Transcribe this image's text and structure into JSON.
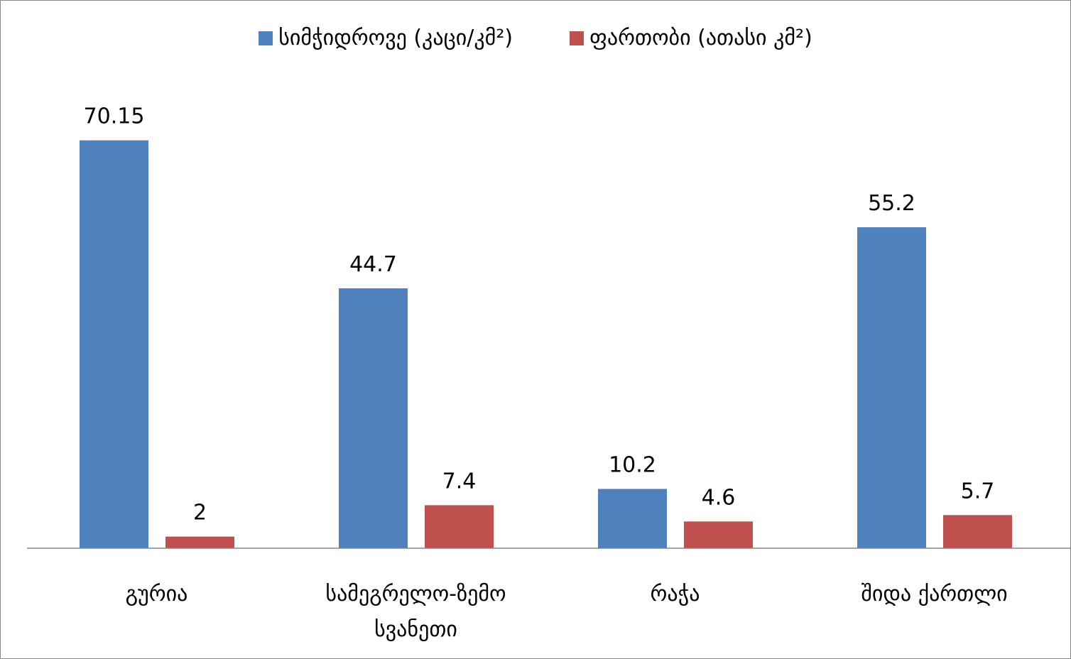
{
  "chart_data": {
    "type": "bar",
    "categories": [
      "გურია",
      "სამეგრელო-ზემო სვანეთი",
      "რაჭა",
      "შიდა ქართლი"
    ],
    "series": [
      {
        "name": "სიმჭიდროვე (კაცი/კმ²)",
        "color": "#4f81bd",
        "values": [
          70.15,
          44.7,
          10.2,
          55.2
        ]
      },
      {
        "name": "ფართობი (ათასი კმ²)",
        "color": "#c0504d",
        "values": [
          2,
          7.4,
          4.6,
          5.7
        ]
      }
    ],
    "ylim": [
      0,
      80
    ],
    "legend": "top"
  }
}
